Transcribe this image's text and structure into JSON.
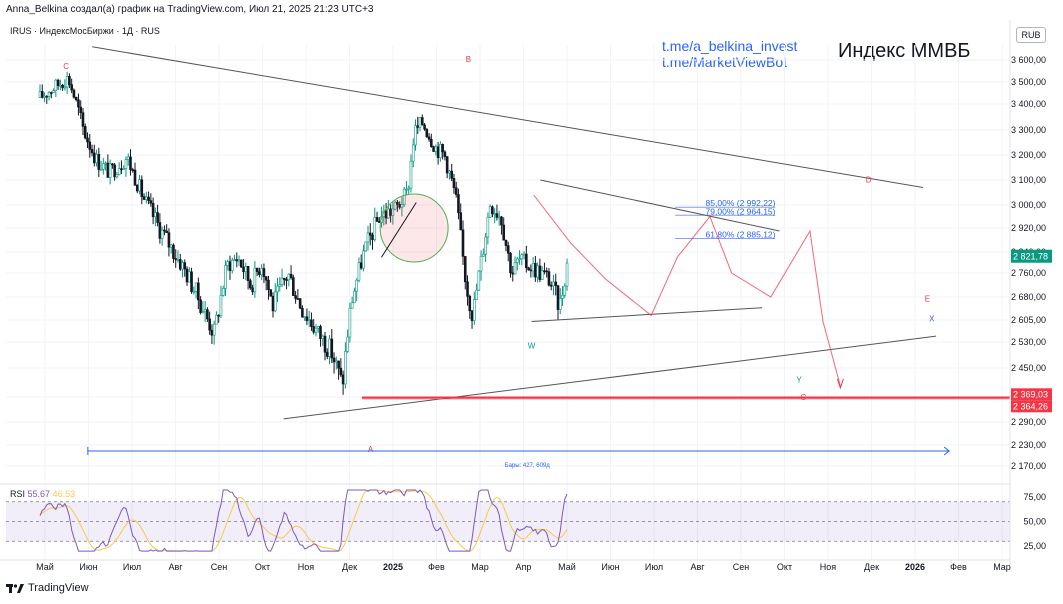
{
  "header": {
    "author_line": "Anna_Belkina создал(а) график на TradingView.com, Июл 21, 2025 21:23 UTC+3",
    "symbol_line": "IRUS · ИндексМосБиржи · 1Д · RUS",
    "currency": "RUB",
    "links": [
      "t.me/a_belkina_invest",
      "t.me/MarketViewBot"
    ],
    "title": "Индекс ММВБ"
  },
  "chart_data": [
    {
      "type": "candlestick",
      "title": "Индекс ММВБ",
      "x_ticks": [
        "Май",
        "Июн",
        "Июл",
        "Авг",
        "Сен",
        "Окт",
        "Ноя",
        "Дек",
        "2025",
        "Фев",
        "Мар",
        "Апр",
        "Май",
        "Июн",
        "Июл",
        "Авг",
        "Сен",
        "Окт",
        "Ноя",
        "Дек",
        "2026",
        "Фев",
        "Мар"
      ],
      "y_ticks": [
        "3 600,00",
        "3 500,00",
        "3 400,00",
        "3 300,00",
        "3 200,00",
        "3 100,00",
        "3 000,00",
        "2 920,00",
        "2 840,00",
        "2 760,00",
        "2 680,00",
        "2 605,00",
        "2 530,00",
        "2 450,00",
        "2 370,00",
        "2 290,00",
        "2 230,00",
        "2 170,00"
      ],
      "ylim": [
        2140,
        3680
      ],
      "last_price": "2 821,78",
      "price_labels": [
        "2 369,03",
        "2 364,26"
      ],
      "fib_levels": [
        {
          "label": "85,00% (2 992,22)",
          "value": 2992.22
        },
        {
          "label": "79,00% (2 964,15)",
          "value": 2964.15
        },
        {
          "label": "61,80% (2 885,12)",
          "value": 2885.12
        }
      ],
      "wave_labels": [
        {
          "text": "C",
          "color": "#f23645"
        },
        {
          "text": "B",
          "color": "#f23645"
        },
        {
          "text": "A",
          "color": "#f23645"
        },
        {
          "text": "W",
          "color": "#089981"
        },
        {
          "text": "D",
          "color": "#f23645"
        },
        {
          "text": "E",
          "color": "#f23645"
        },
        {
          "text": "X",
          "color": "#2962ff"
        },
        {
          "text": "Y",
          "color": "#089981"
        },
        {
          "text": "C",
          "color": "#f23645"
        }
      ],
      "range_note": "Бары: 427, 609д",
      "anchors": [
        {
          "m": 0,
          "v": 3430
        },
        {
          "m": 0.35,
          "v": 3480
        },
        {
          "m": 0.65,
          "v": 3520
        },
        {
          "m": 1.0,
          "v": 3300
        },
        {
          "m": 1.3,
          "v": 3180
        },
        {
          "m": 1.6,
          "v": 3130
        },
        {
          "m": 2.0,
          "v": 3190
        },
        {
          "m": 2.4,
          "v": 3020
        },
        {
          "m": 2.75,
          "v": 2920
        },
        {
          "m": 3.0,
          "v": 2860
        },
        {
          "m": 3.3,
          "v": 2780
        },
        {
          "m": 3.6,
          "v": 2690
        },
        {
          "m": 4.0,
          "v": 2560
        },
        {
          "m": 4.3,
          "v": 2790
        },
        {
          "m": 4.55,
          "v": 2820
        },
        {
          "m": 4.85,
          "v": 2720
        },
        {
          "m": 5.1,
          "v": 2800
        },
        {
          "m": 5.35,
          "v": 2650
        },
        {
          "m": 5.7,
          "v": 2760
        },
        {
          "m": 6.0,
          "v": 2650
        },
        {
          "m": 6.4,
          "v": 2560
        },
        {
          "m": 6.7,
          "v": 2500
        },
        {
          "m": 6.95,
          "v": 2400
        },
        {
          "m": 7.15,
          "v": 2660
        },
        {
          "m": 7.45,
          "v": 2840
        },
        {
          "m": 7.8,
          "v": 2960
        },
        {
          "m": 8.2,
          "v": 2990
        },
        {
          "m": 8.45,
          "v": 3050
        },
        {
          "m": 8.6,
          "v": 3290
        },
        {
          "m": 8.8,
          "v": 3330
        },
        {
          "m": 9.1,
          "v": 3230
        },
        {
          "m": 9.3,
          "v": 3200
        },
        {
          "m": 9.55,
          "v": 3040
        },
        {
          "m": 9.8,
          "v": 2720
        },
        {
          "m": 9.95,
          "v": 2620
        },
        {
          "m": 10.35,
          "v": 3010
        },
        {
          "m": 10.6,
          "v": 2960
        },
        {
          "m": 10.85,
          "v": 2760
        },
        {
          "m": 11.0,
          "v": 2810
        },
        {
          "m": 11.35,
          "v": 2780
        },
        {
          "m": 11.7,
          "v": 2740
        },
        {
          "m": 11.95,
          "v": 2650
        },
        {
          "m": 12.15,
          "v": 2822
        }
      ]
    },
    {
      "type": "line",
      "title": "RSI",
      "label": "RSI",
      "values": [
        55.67,
        46.53
      ],
      "ylim": [
        15,
        85
      ],
      "y_ticks": [
        "75,00",
        "50,00",
        "25,00"
      ],
      "band": [
        30,
        70
      ]
    }
  ]
}
